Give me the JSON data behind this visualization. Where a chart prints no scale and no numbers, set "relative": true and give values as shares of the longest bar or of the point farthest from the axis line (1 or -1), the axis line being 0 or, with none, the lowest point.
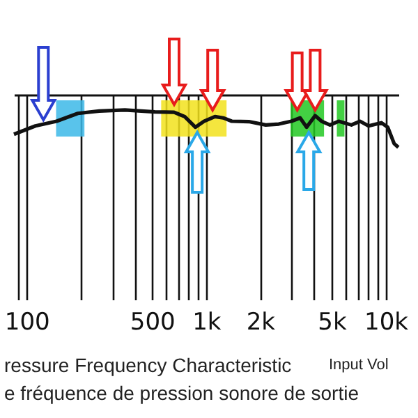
{
  "chart_data": {
    "type": "line",
    "relative": true,
    "log": "x",
    "grid": "x",
    "marker": "none",
    "x": [
      85,
      112,
      147,
      193,
      254,
      353,
      518,
      663,
      760,
      872,
      973,
      1120,
      1245,
      1390,
      1730,
      2150,
      2540,
      2990,
      3340,
      3630,
      4050,
      4400,
      4900,
      5470,
      6450,
      7200,
      8040,
      9470,
      10280,
      11160,
      11780
    ],
    "series": [
      {
        "color": "#111111",
        "values": [
          0.35,
          0.575,
          0.7,
          0.91,
          0.975,
          1.0,
          0.95,
          0.94,
          0.825,
          0.54,
          0.7,
          0.825,
          0.79,
          0.7,
          0.69,
          0.6,
          0.625,
          0.7,
          0.79,
          0.54,
          0.85,
          0.7,
          0.6,
          0.7,
          0.6,
          0.7,
          0.575,
          0.66,
          0.54,
          0.1,
          0
        ]
      }
    ],
    "xlim": [
      85,
      11800
    ],
    "xticks": [
      100,
      500,
      {
        "value": 1000,
        "label": "1k"
      },
      {
        "value": 2000,
        "label": "2k"
      },
      {
        "value": 5000,
        "label": "5k"
      },
      {
        "value": 10000,
        "label": "10k"
      }
    ],
    "bands": [
      {
        "axis": "x",
        "from": 146,
        "to": 210,
        "color": "#3cb8e8"
      },
      {
        "axis": "x",
        "from": 562,
        "to": 1300,
        "color": "#f2e21c"
      },
      {
        "axis": "x",
        "from": 2960,
        "to": 4540,
        "color": "#22c822"
      },
      {
        "axis": "x",
        "from": 5350,
        "to": 5900,
        "color": "#22c822"
      }
    ],
    "annotations": [
      "ressure Frequency Characteristic",
      "Input Vol",
      "e fréquence de pression sonore de sortie"
    ]
  }
}
